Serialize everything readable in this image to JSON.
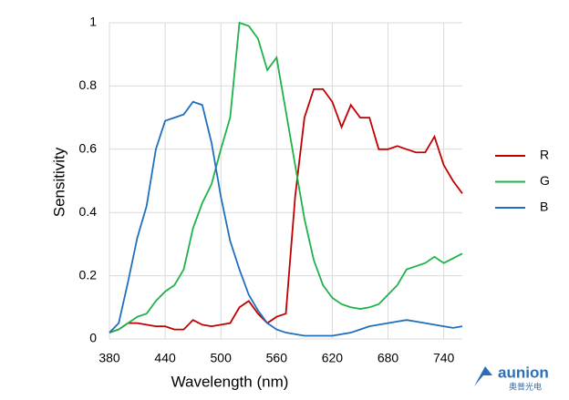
{
  "chart_data": {
    "type": "line",
    "xlabel": "Wavelength (nm)",
    "ylabel": "Sensitivity",
    "x": [
      380,
      390,
      400,
      410,
      420,
      430,
      440,
      450,
      460,
      470,
      480,
      490,
      500,
      510,
      520,
      530,
      540,
      550,
      560,
      570,
      580,
      590,
      600,
      610,
      620,
      630,
      640,
      650,
      660,
      670,
      680,
      690,
      700,
      710,
      720,
      730,
      740,
      750,
      760
    ],
    "series": [
      {
        "name": "R",
        "color": "#c00000",
        "values": [
          0.02,
          0.03,
          0.05,
          0.05,
          0.045,
          0.04,
          0.04,
          0.03,
          0.03,
          0.06,
          0.045,
          0.04,
          0.045,
          0.05,
          0.1,
          0.12,
          0.08,
          0.05,
          0.07,
          0.08,
          0.45,
          0.7,
          0.79,
          0.79,
          0.75,
          0.67,
          0.74,
          0.7,
          0.7,
          0.6,
          0.6,
          0.61,
          0.6,
          0.59,
          0.59,
          0.64,
          0.55,
          0.5,
          0.46
        ]
      },
      {
        "name": "G",
        "color": "#1fb24a",
        "values": [
          0.02,
          0.03,
          0.05,
          0.07,
          0.08,
          0.12,
          0.15,
          0.17,
          0.22,
          0.35,
          0.43,
          0.49,
          0.6,
          0.7,
          1.0,
          0.99,
          0.95,
          0.85,
          0.89,
          0.72,
          0.55,
          0.38,
          0.25,
          0.17,
          0.13,
          0.11,
          0.1,
          0.095,
          0.1,
          0.11,
          0.14,
          0.17,
          0.22,
          0.23,
          0.24,
          0.26,
          0.24,
          0.255,
          0.27
        ]
      },
      {
        "name": "B",
        "color": "#1f6fbf",
        "values": [
          0.02,
          0.05,
          0.18,
          0.32,
          0.42,
          0.6,
          0.69,
          0.7,
          0.71,
          0.75,
          0.74,
          0.62,
          0.45,
          0.31,
          0.22,
          0.14,
          0.09,
          0.05,
          0.03,
          0.02,
          0.015,
          0.01,
          0.01,
          0.01,
          0.01,
          0.015,
          0.02,
          0.03,
          0.04,
          0.045,
          0.05,
          0.055,
          0.06,
          0.055,
          0.05,
          0.045,
          0.04,
          0.035,
          0.04
        ]
      }
    ],
    "xlim": [
      380,
      760
    ],
    "xticks": [
      380,
      440,
      500,
      560,
      620,
      680,
      740
    ],
    "ylim": [
      0,
      1
    ],
    "yticks": [
      0,
      0.2,
      0.4,
      0.6,
      0.8,
      1
    ],
    "grid": true,
    "legend": "right"
  },
  "logo": {
    "text": "aunion",
    "subtext": "奥普光电"
  }
}
